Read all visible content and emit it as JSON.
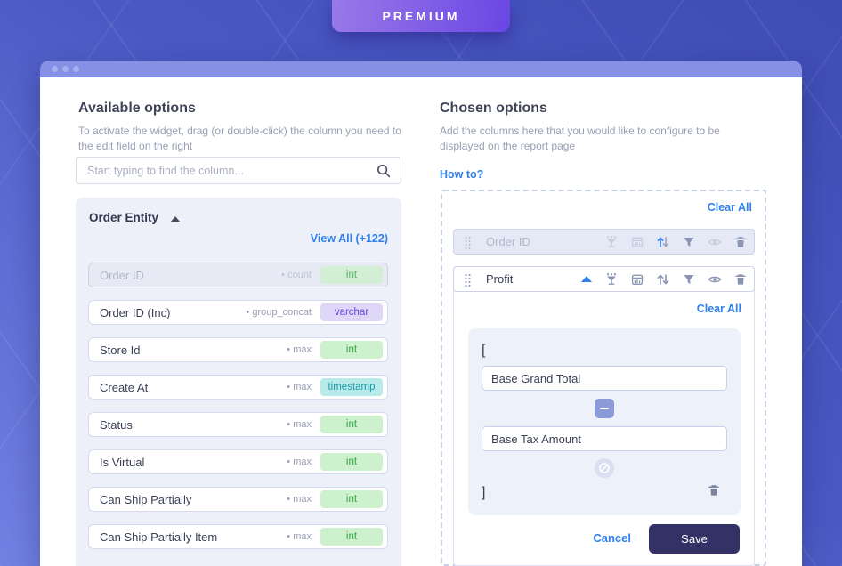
{
  "premium_badge": {
    "label": "PREMIUM"
  },
  "colors": {
    "accent_blue": "#2f80ed",
    "background_indigo": "#4a58c4",
    "window_bar": "#8691e6",
    "save_navy": "#333166",
    "badge_int_bg": "#cdf0cd",
    "badge_int_text": "#2fa845",
    "badge_varchar_bg": "#ded7f8",
    "badge_varchar_text": "#6246d8",
    "badge_timestamp_bg": "#b9eaea",
    "badge_timestamp_text": "#1b9aa8"
  },
  "available": {
    "title": "Available options",
    "subtitle": "To activate the widget, drag (or double-click) the column you need to the edit field on the right",
    "search_placeholder": "Start typing to find the column...",
    "search_icon": "search-icon",
    "group": {
      "name": "Order Entity",
      "collapse_icon": "triangle-up-icon"
    },
    "view_all_label": "View All (+122)",
    "items": [
      {
        "name": "Order ID",
        "aggregation": "count",
        "type": "int",
        "type_style": "int",
        "disabled": true
      },
      {
        "name": "Order ID (Inc)",
        "aggregation": "group_concat",
        "type": "varchar",
        "type_style": "varchar",
        "disabled": false
      },
      {
        "name": "Store Id",
        "aggregation": "max",
        "type": "int",
        "type_style": "int",
        "disabled": false
      },
      {
        "name": "Create At",
        "aggregation": "max",
        "type": "timestamp",
        "type_style": "timestamp",
        "disabled": false
      },
      {
        "name": "Status",
        "aggregation": "max",
        "type": "int",
        "type_style": "int",
        "disabled": false
      },
      {
        "name": "Is Virtual",
        "aggregation": "max",
        "type": "int",
        "type_style": "int",
        "disabled": false
      },
      {
        "name": "Can Ship Partially",
        "aggregation": "max",
        "type": "int",
        "type_style": "int",
        "disabled": false
      },
      {
        "name": "Can Ship Partially Item",
        "aggregation": "max",
        "type": "int",
        "type_style": "int",
        "disabled": false
      }
    ]
  },
  "chosen": {
    "title": "Chosen options",
    "subtitle": "Add the columns here that you would like to configure to be displayed on the report page",
    "how_to_label": "How to?",
    "clear_all_label": "Clear All",
    "rows": [
      {
        "name": "Order ID",
        "disabled": true,
        "expanded": false,
        "icons": [
          {
            "name": "aggregate-icon",
            "state": "faint"
          },
          {
            "name": "calendar-icon",
            "state": "faint"
          },
          {
            "name": "sort-icon",
            "state": "up-blue"
          },
          {
            "name": "filter-icon",
            "state": "normal"
          },
          {
            "name": "eye-icon",
            "state": "faint"
          },
          {
            "name": "trash-icon",
            "state": "normal"
          }
        ]
      },
      {
        "name": "Profit",
        "disabled": false,
        "expanded": true,
        "collapse_icon": "triangle-up-icon",
        "icons": [
          {
            "name": "aggregate-icon",
            "state": "normal"
          },
          {
            "name": "calendar-icon",
            "state": "normal"
          },
          {
            "name": "sort-icon",
            "state": "normal"
          },
          {
            "name": "filter-icon",
            "state": "normal"
          },
          {
            "name": "eye-icon",
            "state": "normal"
          },
          {
            "name": "trash-icon",
            "state": "normal"
          }
        ]
      }
    ],
    "editor": {
      "clear_all_label": "Clear All",
      "bracket_open": "[",
      "operand_1": "Base Grand Total",
      "operator_icon": "minus-icon",
      "operand_2": "Base Tax Amount",
      "noop_icon": "cancel-circle-icon",
      "bracket_close": "]",
      "delete_icon": "trash-icon",
      "cancel_label": "Cancel",
      "save_label": "Save"
    }
  }
}
